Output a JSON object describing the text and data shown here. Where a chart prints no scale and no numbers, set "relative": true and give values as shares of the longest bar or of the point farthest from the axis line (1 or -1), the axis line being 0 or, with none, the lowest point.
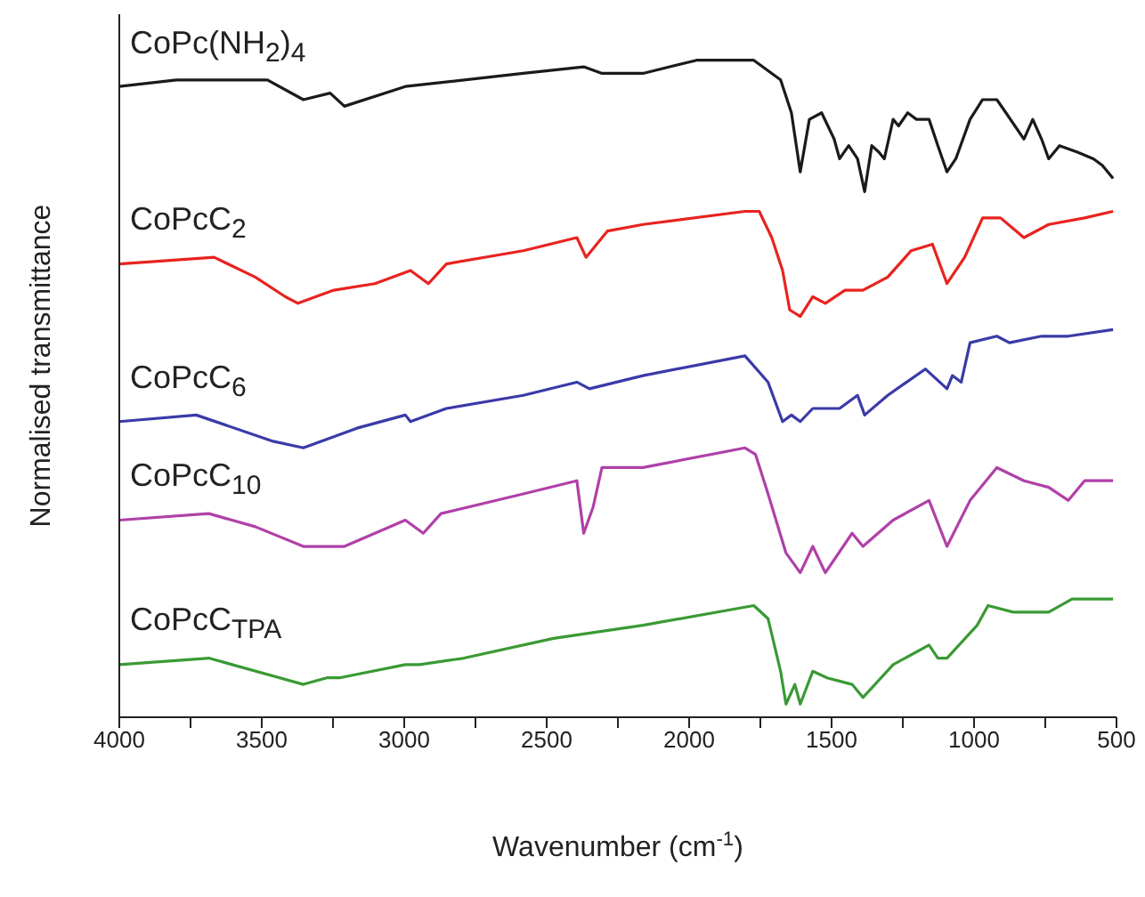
{
  "chart_data": {
    "type": "line",
    "relative": true,
    "xlabel": "Wavenumber (cm$^{-1}$)",
    "ylabel": "Normalised transmittance",
    "xlim": [
      4000,
      500
    ],
    "xticks": [
      4000,
      {
        "value": 3750,
        "label": null
      },
      3500,
      {
        "value": 3250,
        "label": null
      },
      3000,
      {
        "value": 2750,
        "label": null
      },
      2500,
      {
        "value": 2250,
        "label": null
      },
      2000,
      {
        "value": 1750,
        "label": null
      },
      1500,
      {
        "value": 1250,
        "label": null
      },
      1000,
      {
        "value": 750,
        "label": null
      },
      500
    ],
    "grid": false,
    "legend": false,
    "marker": "none",
    "line_style": "solid",
    "series": [
      {
        "name": "CoPc(NH$_{2}$)$_{4}$",
        "color": "#1a1a1a",
        "x": [
          4000,
          3800,
          3480,
          3354,
          3260,
          3210,
          2996,
          2582,
          2370,
          2306,
          2162,
          1974,
          1773,
          1710,
          1679,
          1641,
          1610,
          1578,
          1535,
          1491,
          1472,
          1440,
          1409,
          1384,
          1359,
          1334,
          1315,
          1284,
          1265,
          1233,
          1202,
          1158,
          1127,
          1095,
          1064,
          1014,
          970,
          920,
          888,
          825,
          794,
          763,
          738,
          700,
          637,
          581,
          550,
          512
        ],
        "values": [
          0.96,
          0.97,
          0.97,
          0.94,
          0.95,
          0.93,
          0.96,
          0.98,
          0.99,
          0.98,
          0.98,
          1.0,
          1.0,
          0.98,
          0.97,
          0.92,
          0.83,
          0.91,
          0.92,
          0.88,
          0.85,
          0.87,
          0.85,
          0.8,
          0.87,
          0.86,
          0.85,
          0.91,
          0.9,
          0.92,
          0.91,
          0.91,
          0.87,
          0.83,
          0.85,
          0.91,
          0.94,
          0.94,
          0.92,
          0.88,
          0.91,
          0.88,
          0.85,
          0.87,
          0.86,
          0.85,
          0.84,
          0.82
        ]
      },
      {
        "name": "CoPcC$_{2}$",
        "color": "#e8231f",
        "x": [
          4000,
          3667,
          3523,
          3417,
          3373,
          3247,
          3103,
          2978,
          2915,
          2852,
          2582,
          2394,
          2362,
          2287,
          2162,
          1804,
          1754,
          1710,
          1672,
          1647,
          1610,
          1566,
          1522,
          1453,
          1390,
          1303,
          1221,
          1146,
          1095,
          1033,
          970,
          907,
          825,
          738,
          612,
          512
        ],
        "values": [
          0.69,
          0.7,
          0.67,
          0.64,
          0.63,
          0.65,
          0.66,
          0.68,
          0.66,
          0.69,
          0.71,
          0.73,
          0.7,
          0.74,
          0.75,
          0.77,
          0.77,
          0.73,
          0.68,
          0.62,
          0.61,
          0.64,
          0.63,
          0.65,
          0.65,
          0.67,
          0.71,
          0.72,
          0.66,
          0.7,
          0.76,
          0.76,
          0.73,
          0.75,
          0.76,
          0.77
        ]
      },
      {
        "name": "CoPcC$_{6}$",
        "color": "#3a3aa8",
        "x": [
          4000,
          3730,
          3460,
          3354,
          3166,
          2996,
          2978,
          2852,
          2582,
          2394,
          2350,
          2162,
          1804,
          1723,
          1672,
          1641,
          1610,
          1566,
          1472,
          1409,
          1384,
          1303,
          1171,
          1095,
          1076,
          1045,
          1014,
          920,
          876,
          763,
          669,
          512
        ],
        "values": [
          0.45,
          0.46,
          0.42,
          0.41,
          0.44,
          0.46,
          0.45,
          0.47,
          0.49,
          0.51,
          0.5,
          0.52,
          0.55,
          0.51,
          0.45,
          0.46,
          0.45,
          0.47,
          0.47,
          0.49,
          0.46,
          0.49,
          0.53,
          0.5,
          0.52,
          0.51,
          0.57,
          0.58,
          0.57,
          0.58,
          0.58,
          0.59
        ]
      },
      {
        "name": "CoPcC$_{10}$",
        "color": "#b040a8",
        "x": [
          4000,
          3686,
          3523,
          3354,
          3210,
          2996,
          2933,
          2871,
          2582,
          2394,
          2370,
          2337,
          2306,
          2162,
          1804,
          1767,
          1723,
          1660,
          1610,
          1566,
          1522,
          1428,
          1390,
          1284,
          1158,
          1095,
          1014,
          920,
          825,
          738,
          669,
          612,
          512
        ],
        "values": [
          0.3,
          0.31,
          0.29,
          0.26,
          0.26,
          0.3,
          0.28,
          0.31,
          0.34,
          0.36,
          0.28,
          0.32,
          0.38,
          0.38,
          0.41,
          0.4,
          0.34,
          0.25,
          0.22,
          0.26,
          0.22,
          0.28,
          0.26,
          0.3,
          0.33,
          0.26,
          0.33,
          0.38,
          0.36,
          0.35,
          0.33,
          0.36,
          0.36
        ]
      },
      {
        "name": "CoPcC$_{TPA}$",
        "color": "#3a9a34",
        "x": [
          4000,
          3686,
          3354,
          3272,
          3228,
          2996,
          2946,
          2790,
          2476,
          2162,
          1773,
          1723,
          1679,
          1660,
          1629,
          1610,
          1566,
          1516,
          1428,
          1390,
          1284,
          1158,
          1127,
          1095,
          989,
          951,
          863,
          738,
          656,
          512
        ],
        "values": [
          0.08,
          0.09,
          0.05,
          0.06,
          0.06,
          0.08,
          0.08,
          0.09,
          0.12,
          0.14,
          0.17,
          0.15,
          0.07,
          0.02,
          0.05,
          0.02,
          0.07,
          0.06,
          0.05,
          0.03,
          0.08,
          0.11,
          0.09,
          0.09,
          0.14,
          0.17,
          0.16,
          0.16,
          0.18,
          0.18
        ]
      }
    ]
  }
}
